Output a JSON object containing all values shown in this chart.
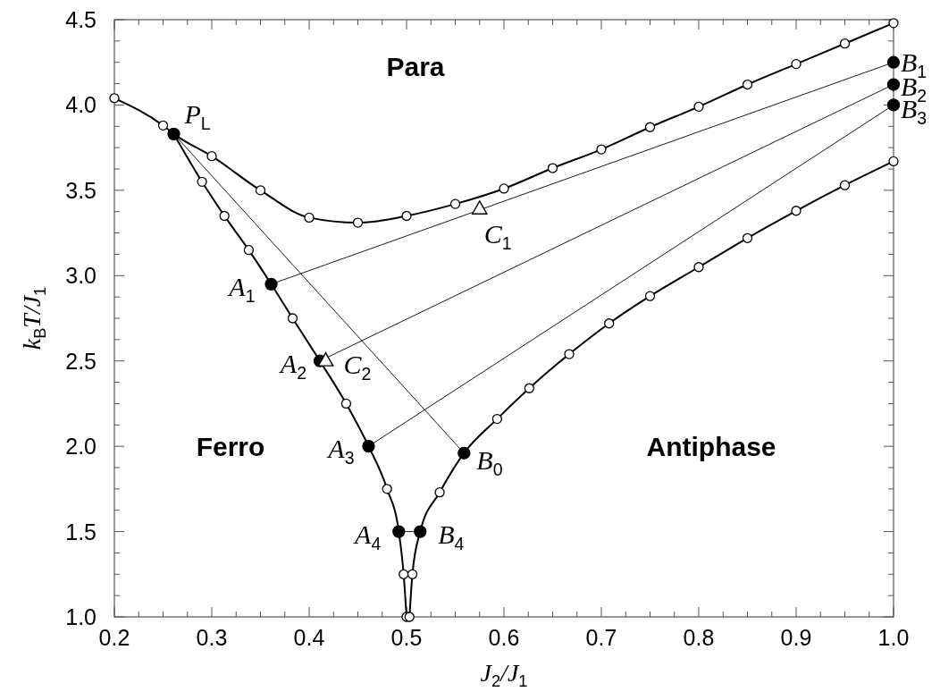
{
  "chart_data": {
    "type": "line",
    "xlabel": "J$_{2}$/J$_{1}$",
    "ylabel": "k$_{B}$T/J$_{1}$",
    "xlim": [
      0.2,
      1.0
    ],
    "ylim": [
      1.0,
      4.5
    ],
    "xticks": [
      0.2,
      {
        "value": 0.225,
        "label": null
      },
      {
        "value": 0.25,
        "label": null
      },
      {
        "value": 0.275,
        "label": null
      },
      0.3,
      {
        "value": 0.325,
        "label": null
      },
      {
        "value": 0.35,
        "label": null
      },
      {
        "value": 0.375,
        "label": null
      },
      0.4,
      {
        "value": 0.425,
        "label": null
      },
      {
        "value": 0.45,
        "label": null
      },
      {
        "value": 0.475,
        "label": null
      },
      0.5,
      {
        "value": 0.525,
        "label": null
      },
      {
        "value": 0.55,
        "label": null
      },
      {
        "value": 0.575,
        "label": null
      },
      0.6,
      {
        "value": 0.625,
        "label": null
      },
      {
        "value": 0.65,
        "label": null
      },
      {
        "value": 0.675,
        "label": null
      },
      0.7,
      {
        "value": 0.725,
        "label": null
      },
      {
        "value": 0.75,
        "label": null
      },
      {
        "value": 0.775,
        "label": null
      },
      0.8,
      {
        "value": 0.825,
        "label": null
      },
      {
        "value": 0.85,
        "label": null
      },
      {
        "value": 0.875,
        "label": null
      },
      0.9,
      {
        "value": 0.925,
        "label": null
      },
      {
        "value": 0.95,
        "label": null
      },
      {
        "value": 0.975,
        "label": null
      },
      {
        "value": 1.0,
        "label": "1.0"
      }
    ],
    "yticks": [
      {
        "value": 1.0,
        "label": "1.0"
      },
      {
        "value": 1.125,
        "label": null
      },
      {
        "value": 1.25,
        "label": null
      },
      {
        "value": 1.375,
        "label": null
      },
      1.5,
      {
        "value": 1.625,
        "label": null
      },
      {
        "value": 1.75,
        "label": null
      },
      {
        "value": 1.875,
        "label": null
      },
      {
        "value": 2.0,
        "label": "2.0"
      },
      {
        "value": 2.125,
        "label": null
      },
      {
        "value": 2.25,
        "label": null
      },
      {
        "value": 2.375,
        "label": null
      },
      2.5,
      {
        "value": 2.625,
        "label": null
      },
      {
        "value": 2.75,
        "label": null
      },
      {
        "value": 2.875,
        "label": null
      },
      {
        "value": 3.0,
        "label": "3.0"
      },
      {
        "value": 3.125,
        "label": null
      },
      {
        "value": 3.25,
        "label": null
      },
      {
        "value": 3.375,
        "label": null
      },
      3.5,
      {
        "value": 3.625,
        "label": null
      },
      {
        "value": 3.75,
        "label": null
      },
      {
        "value": 3.875,
        "label": null
      },
      {
        "value": 4.0,
        "label": "4.0"
      },
      {
        "value": 4.125,
        "label": null
      },
      {
        "value": 4.25,
        "label": null
      },
      {
        "value": 4.375,
        "label": null
      },
      4.5
    ],
    "grid": false,
    "series": [
      {
        "type": "line",
        "color": "#000000",
        "marker": "circle",
        "line_style": "solid",
        "x": [
          0.2,
          0.25,
          0.261,
          0.3,
          0.35,
          0.4,
          0.45,
          0.5,
          0.55,
          0.6,
          0.65,
          0.7,
          0.75,
          0.8,
          0.85,
          0.9,
          0.95,
          1.0
        ],
        "values": [
          4.04,
          3.88,
          3.83,
          3.7,
          3.5,
          3.34,
          3.31,
          3.35,
          3.42,
          3.51,
          3.63,
          3.74,
          3.87,
          3.99,
          4.12,
          4.24,
          4.36,
          4.48
        ]
      },
      {
        "type": "line",
        "color": "#000000",
        "marker": "circle",
        "line_style": "solid",
        "x": [
          0.261,
          0.29,
          0.313,
          0.338,
          0.361,
          0.383,
          0.411,
          0.438,
          0.461,
          0.48,
          0.492,
          0.497,
          0.5
        ],
        "values": [
          3.83,
          3.55,
          3.35,
          3.15,
          2.95,
          2.75,
          2.5,
          2.25,
          2.0,
          1.75,
          1.5,
          1.25,
          1.0
        ]
      },
      {
        "type": "line",
        "color": "#000000",
        "marker": "circle",
        "line_style": "solid",
        "x": [
          0.503,
          0.506,
          0.514,
          0.534,
          0.559,
          0.593,
          0.626,
          0.667,
          0.708,
          0.75,
          0.8,
          0.85,
          0.9,
          0.95,
          1.0
        ],
        "values": [
          1.0,
          1.25,
          1.5,
          1.73,
          1.96,
          2.16,
          2.34,
          2.54,
          2.72,
          2.88,
          3.05,
          3.22,
          3.38,
          3.53,
          3.67
        ]
      },
      {
        "type": "line",
        "color": "#000000",
        "marker": "none",
        "line_style": "solid",
        "x": [
          0.261,
          0.559
        ],
        "values": [
          3.83,
          1.96
        ]
      },
      {
        "type": "line",
        "color": "#000000",
        "marker": "none",
        "line_style": "solid",
        "x": [
          0.361,
          1.0
        ],
        "values": [
          2.95,
          4.25
        ]
      },
      {
        "type": "line",
        "color": "#000000",
        "marker": "none",
        "line_style": "solid",
        "x": [
          0.411,
          1.0
        ],
        "values": [
          2.5,
          4.12
        ]
      },
      {
        "type": "line",
        "color": "#000000",
        "marker": "none",
        "line_style": "solid",
        "x": [
          0.461,
          1.0
        ],
        "values": [
          2.0,
          4.0
        ]
      },
      {
        "type": "line",
        "color": "#000000",
        "marker": "none",
        "line_style": "solid",
        "x": [
          0.492,
          0.514
        ],
        "values": [
          1.5,
          1.5
        ]
      },
      {
        "type": "scatter",
        "color": "#000000",
        "marker": "circle",
        "x": [
          0.261,
          0.361,
          0.411,
          0.461,
          0.492,
          0.514,
          0.559,
          1.0,
          1.0,
          1.0
        ],
        "values": [
          3.83,
          2.95,
          2.5,
          2.0,
          1.5,
          1.5,
          1.96,
          4.25,
          4.12,
          4.0
        ]
      },
      {
        "type": "scatter",
        "color": "#000000",
        "marker": "triangle",
        "x": [
          0.575,
          0.417
        ],
        "values": [
          3.39,
          2.5
        ]
      }
    ],
    "annotations": [
      "Para",
      "Ferro",
      "Antiphase",
      {
        "text": "P$_{L}$",
        "x": 0.261,
        "y": 3.83
      },
      {
        "text": "A$_{1}$",
        "x": 0.361,
        "y": 2.95
      },
      {
        "text": "A$_{2}$",
        "x": 0.411,
        "y": 2.5
      },
      {
        "text": "A$_{3}$",
        "x": 0.461,
        "y": 2.0
      },
      {
        "text": "A$_{4}$",
        "x": 0.492,
        "y": 1.5
      },
      {
        "text": "B$_{0}$",
        "x": 0.559,
        "y": 1.96
      },
      {
        "text": "B$_{1}$",
        "x": 1.0,
        "y": 4.25
      },
      {
        "text": "B$_{2}$",
        "x": 1.0,
        "y": 4.12
      },
      {
        "text": "B$_{3}$",
        "x": 1.0,
        "y": 4.0
      },
      {
        "text": "B$_{4}$",
        "x": 0.514,
        "y": 1.5
      },
      {
        "text": "C$_{1}$",
        "x": 0.575,
        "y": 3.39
      },
      {
        "text": "C$_{2}$",
        "x": 0.417,
        "y": 2.5
      }
    ]
  }
}
